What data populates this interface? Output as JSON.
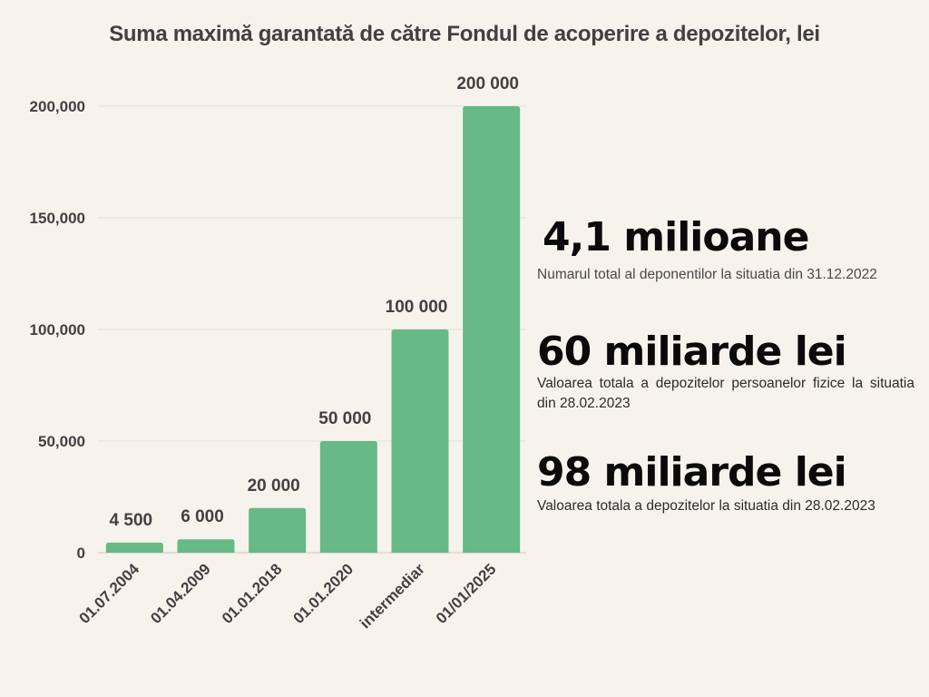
{
  "chart_data": {
    "type": "bar",
    "title": "Suma maximă garantată de către Fondul de acoperire a depozitelor, lei",
    "xlabel": "",
    "ylabel": "",
    "categories": [
      "01.07.2004",
      "01.04.2009",
      "01.01.2018",
      "01.01.2020",
      "intermediar",
      "01/01/2025"
    ],
    "values": [
      4500,
      6000,
      20000,
      50000,
      100000,
      200000
    ],
    "data_labels": [
      "4 500",
      "6 000",
      "20 000",
      "50 000",
      "100 000",
      "200 000"
    ],
    "ylim": [
      0,
      200000
    ],
    "yticks": [
      0,
      50000,
      100000,
      150000,
      200000
    ],
    "ytick_labels": [
      "0",
      "50,000",
      "100,000",
      "150,000",
      "200,000"
    ],
    "grid": true,
    "bar_color": "#67b985"
  },
  "stats": [
    {
      "value": "4,1 milioane",
      "description": "Numarul total al deponentilor la situatia din 31.12.2022"
    },
    {
      "value": "60 miliarde lei",
      "description": "Valoarea totala a depozitelor persoanelor fizice la situatia din 28.02.2023"
    },
    {
      "value": "98 miliarde lei",
      "description": "Valoarea totala a depozitelor la situatia din 28.02.2023"
    }
  ]
}
